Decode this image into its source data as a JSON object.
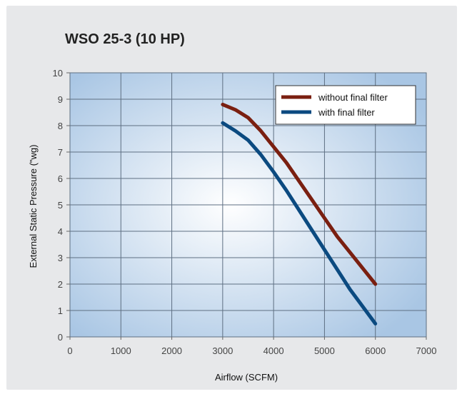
{
  "chart_data": {
    "type": "line",
    "title": "WSO 25-3 (10 HP)",
    "xlabel": "Airflow (SCFM)",
    "ylabel": "External Static Pressure (\"wg)",
    "xlim": [
      0,
      7000
    ],
    "ylim": [
      0,
      10
    ],
    "x_ticks": [
      0,
      1000,
      2000,
      3000,
      4000,
      5000,
      6000,
      7000
    ],
    "y_ticks": [
      0,
      1,
      2,
      3,
      4,
      5,
      6,
      7,
      8,
      9,
      10
    ],
    "grid": true,
    "legend_position": "top-right",
    "series": [
      {
        "name": "without final filter",
        "color": "#7a1f10",
        "points": [
          [
            3000,
            8.8
          ],
          [
            3250,
            8.6
          ],
          [
            3500,
            8.3
          ],
          [
            3750,
            7.8
          ],
          [
            4000,
            7.2
          ],
          [
            4250,
            6.6
          ],
          [
            4500,
            5.9
          ],
          [
            4750,
            5.2
          ],
          [
            5000,
            4.5
          ],
          [
            5250,
            3.8
          ],
          [
            5500,
            3.2
          ],
          [
            5750,
            2.6
          ],
          [
            6000,
            2.0
          ]
        ]
      },
      {
        "name": "with final filter",
        "color": "#0b4a80",
        "points": [
          [
            3000,
            8.1
          ],
          [
            3250,
            7.8
          ],
          [
            3500,
            7.45
          ],
          [
            3750,
            6.9
          ],
          [
            4000,
            6.25
          ],
          [
            4250,
            5.55
          ],
          [
            4500,
            4.8
          ],
          [
            4750,
            4.05
          ],
          [
            5000,
            3.3
          ],
          [
            5250,
            2.55
          ],
          [
            5500,
            1.8
          ],
          [
            5750,
            1.15
          ],
          [
            6000,
            0.5
          ]
        ]
      }
    ],
    "colors": {
      "background_card": "#e7e8ea",
      "plot_center": "#ffffff",
      "plot_edge": "#a9c6e4",
      "grid": "#5e6f82"
    }
  }
}
